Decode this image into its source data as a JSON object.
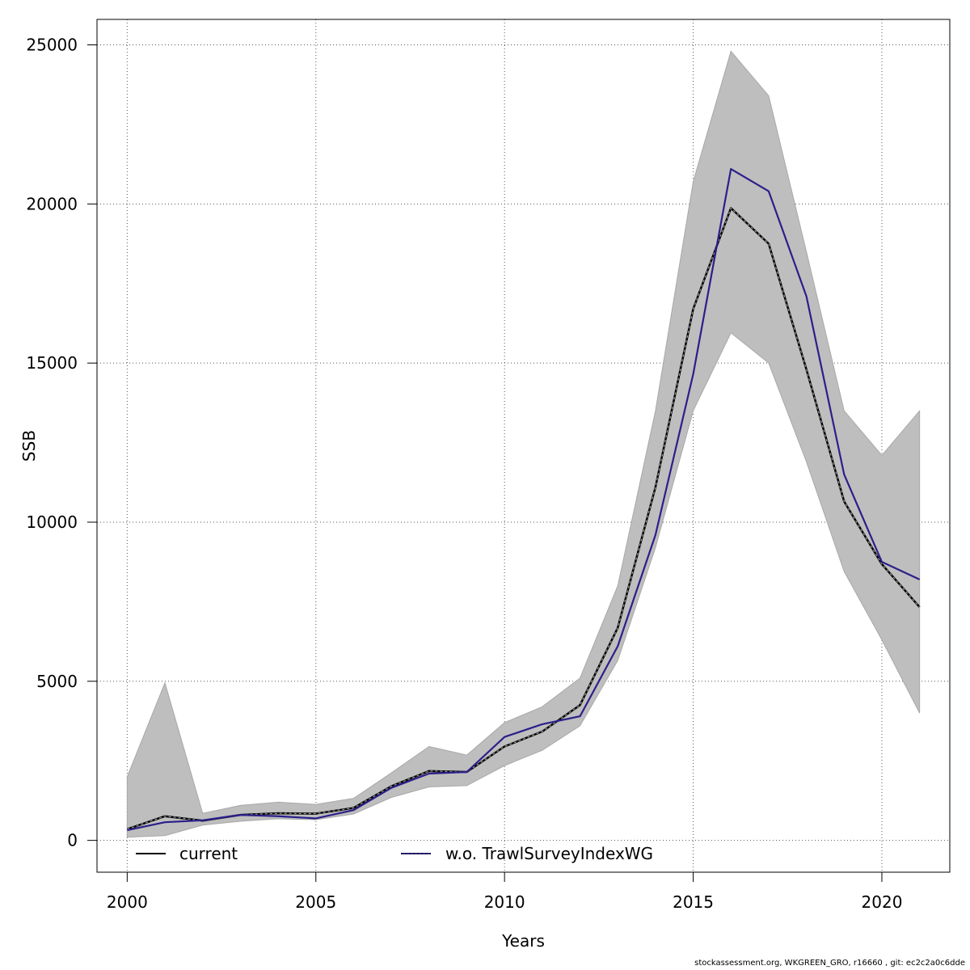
{
  "chart_data": {
    "type": "line",
    "xlabel": "Years",
    "ylabel": "SSB",
    "xlim": [
      1999.2,
      2021.8
    ],
    "ylim": [
      -1000,
      25800
    ],
    "x_ticks": [
      2000,
      2005,
      2010,
      2015,
      2020
    ],
    "y_ticks": [
      0,
      5000,
      10000,
      15000,
      20000,
      25000
    ],
    "grid": true,
    "legend_position": "bottom",
    "x": [
      2000,
      2001,
      2002,
      2003,
      2004,
      2005,
      2006,
      2007,
      2008,
      2009,
      2010,
      2011,
      2012,
      2013,
      2014,
      2015,
      2016,
      2017,
      2018,
      2019,
      2020,
      2021
    ],
    "band": {
      "upper": [
        2000,
        4950,
        850,
        1100,
        1200,
        1130,
        1320,
        2120,
        2950,
        2680,
        3700,
        4200,
        5100,
        8000,
        13500,
        20700,
        24800,
        23400,
        18500,
        13500,
        12100,
        13500
      ],
      "lower": [
        100,
        150,
        480,
        600,
        680,
        650,
        830,
        1350,
        1680,
        1720,
        2350,
        2830,
        3600,
        5650,
        9200,
        13500,
        15950,
        15000,
        11900,
        8450,
        6300,
        4000
      ],
      "color": "#bebebe"
    },
    "series": [
      {
        "name": "current",
        "color": "#000000",
        "values": [
          350,
          760,
          620,
          800,
          850,
          840,
          1020,
          1700,
          2180,
          2150,
          2950,
          3420,
          4250,
          6680,
          11100,
          16700,
          19870,
          18750,
          14800,
          10650,
          8680,
          7330
        ]
      },
      {
        "name": "w.o. TrawlSurveyIndexWG",
        "color": "#2b1f8a",
        "values": [
          320,
          570,
          630,
          800,
          760,
          690,
          950,
          1650,
          2100,
          2150,
          3250,
          3650,
          3900,
          6100,
          9600,
          14650,
          21100,
          20400,
          17100,
          11500,
          8750,
          8200
        ]
      }
    ]
  },
  "footer": "stockassessment.org, WKGREEN_GRO, r16660 , git: ec2c2a0c6dde"
}
